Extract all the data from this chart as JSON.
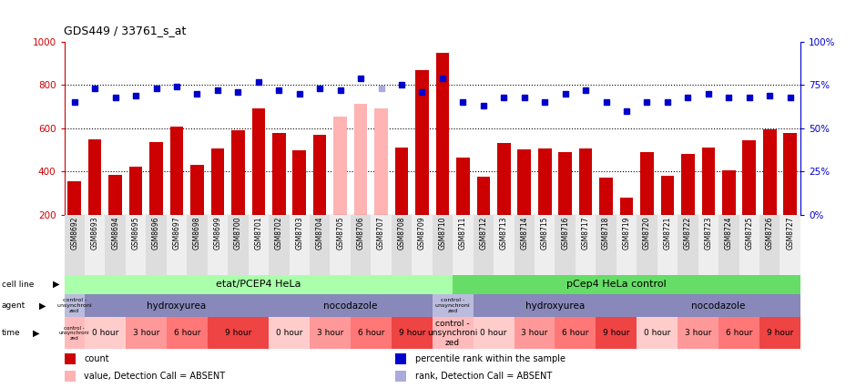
{
  "title": "GDS449 / 33761_s_at",
  "samples": [
    "GSM8692",
    "GSM8693",
    "GSM8694",
    "GSM8695",
    "GSM8696",
    "GSM8697",
    "GSM8698",
    "GSM8699",
    "GSM8700",
    "GSM8701",
    "GSM8702",
    "GSM8703",
    "GSM8704",
    "GSM8705",
    "GSM8706",
    "GSM8707",
    "GSM8708",
    "GSM8709",
    "GSM8710",
    "GSM8711",
    "GSM8712",
    "GSM8713",
    "GSM8714",
    "GSM8715",
    "GSM8716",
    "GSM8717",
    "GSM8718",
    "GSM8719",
    "GSM8720",
    "GSM8721",
    "GSM8722",
    "GSM8723",
    "GSM8724",
    "GSM8725",
    "GSM8726",
    "GSM8727"
  ],
  "counts": [
    355,
    548,
    383,
    420,
    534,
    608,
    430,
    506,
    590,
    693,
    580,
    497,
    568,
    653,
    715,
    693,
    509,
    870,
    950,
    465,
    375,
    530,
    500,
    507,
    490,
    505,
    370,
    280,
    490,
    380,
    480,
    510,
    405,
    545,
    595,
    580
  ],
  "ranks": [
    65,
    73,
    68,
    69,
    73,
    74,
    70,
    72,
    71,
    77,
    72,
    70,
    73,
    72,
    79,
    73,
    75,
    71,
    79,
    65,
    63,
    68,
    68,
    65,
    70,
    72,
    65,
    60,
    65,
    65,
    68,
    70,
    68,
    68,
    69,
    68
  ],
  "absent_bars": [
    false,
    false,
    false,
    false,
    false,
    false,
    false,
    false,
    false,
    false,
    false,
    false,
    false,
    true,
    true,
    true,
    false,
    false,
    false,
    false,
    false,
    false,
    false,
    false,
    false,
    false,
    false,
    false,
    false,
    false,
    false,
    false,
    false,
    false,
    false,
    false
  ],
  "absent_ranks": [
    false,
    false,
    false,
    false,
    false,
    false,
    false,
    false,
    false,
    false,
    false,
    false,
    false,
    false,
    false,
    true,
    false,
    false,
    false,
    false,
    false,
    false,
    false,
    false,
    false,
    false,
    false,
    false,
    false,
    false,
    false,
    false,
    false,
    false,
    false,
    false
  ],
  "bar_color": "#CC0000",
  "absent_bar_color": "#FFB3B3",
  "rank_color": "#0000CC",
  "absent_rank_color": "#AAAADD",
  "ylim_left": [
    200,
    1000
  ],
  "ylim_right": [
    0,
    100
  ],
  "yticks_left": [
    200,
    400,
    600,
    800,
    1000
  ],
  "yticks_right": [
    0,
    25,
    50,
    75,
    100
  ],
  "agent_regions": [
    {
      "label": "control -\nunsynchroni\nzed",
      "start": 0,
      "end": 1,
      "color": "#BBBBDD"
    },
    {
      "label": "hydroxyurea",
      "start": 1,
      "end": 10,
      "color": "#8888BB"
    },
    {
      "label": "nocodazole",
      "start": 10,
      "end": 18,
      "color": "#8888BB"
    },
    {
      "label": "control -\nunsynchroni\nzed",
      "start": 18,
      "end": 20,
      "color": "#BBBBDD"
    },
    {
      "label": "hydroxyurea",
      "start": 20,
      "end": 28,
      "color": "#8888BB"
    },
    {
      "label": "nocodazole",
      "start": 28,
      "end": 36,
      "color": "#8888BB"
    }
  ],
  "time_regions": [
    {
      "label": "control -\nunsynchroni\nzed",
      "start": 0,
      "end": 1,
      "color": "#FFBBBB"
    },
    {
      "label": "0 hour",
      "start": 1,
      "end": 3,
      "color": "#FFCCCC"
    },
    {
      "label": "3 hour",
      "start": 3,
      "end": 5,
      "color": "#FF9999"
    },
    {
      "label": "6 hour",
      "start": 5,
      "end": 7,
      "color": "#FF7777"
    },
    {
      "label": "9 hour",
      "start": 7,
      "end": 10,
      "color": "#EE4444"
    },
    {
      "label": "0 hour",
      "start": 10,
      "end": 12,
      "color": "#FFCCCC"
    },
    {
      "label": "3 hour",
      "start": 12,
      "end": 14,
      "color": "#FF9999"
    },
    {
      "label": "6 hour",
      "start": 14,
      "end": 16,
      "color": "#FF7777"
    },
    {
      "label": "9 hour",
      "start": 16,
      "end": 18,
      "color": "#EE4444"
    },
    {
      "label": "control -\nunsynchroni\nzed",
      "start": 18,
      "end": 20,
      "color": "#FFBBBB"
    },
    {
      "label": "0 hour",
      "start": 20,
      "end": 22,
      "color": "#FFCCCC"
    },
    {
      "label": "3 hour",
      "start": 22,
      "end": 24,
      "color": "#FF9999"
    },
    {
      "label": "6 hour",
      "start": 24,
      "end": 26,
      "color": "#FF7777"
    },
    {
      "label": "9 hour",
      "start": 26,
      "end": 28,
      "color": "#EE4444"
    },
    {
      "label": "0 hour",
      "start": 28,
      "end": 30,
      "color": "#FFCCCC"
    },
    {
      "label": "3 hour",
      "start": 30,
      "end": 32,
      "color": "#FF9999"
    },
    {
      "label": "6 hour",
      "start": 32,
      "end": 34,
      "color": "#FF7777"
    },
    {
      "label": "9 hour",
      "start": 34,
      "end": 36,
      "color": "#EE4444"
    }
  ],
  "legend_items": [
    {
      "label": "count",
      "color": "#CC0000"
    },
    {
      "label": "percentile rank within the sample",
      "color": "#0000CC"
    },
    {
      "label": "value, Detection Call = ABSENT",
      "color": "#FFB3B3"
    },
    {
      "label": "rank, Detection Call = ABSENT",
      "color": "#AAAADD"
    }
  ]
}
